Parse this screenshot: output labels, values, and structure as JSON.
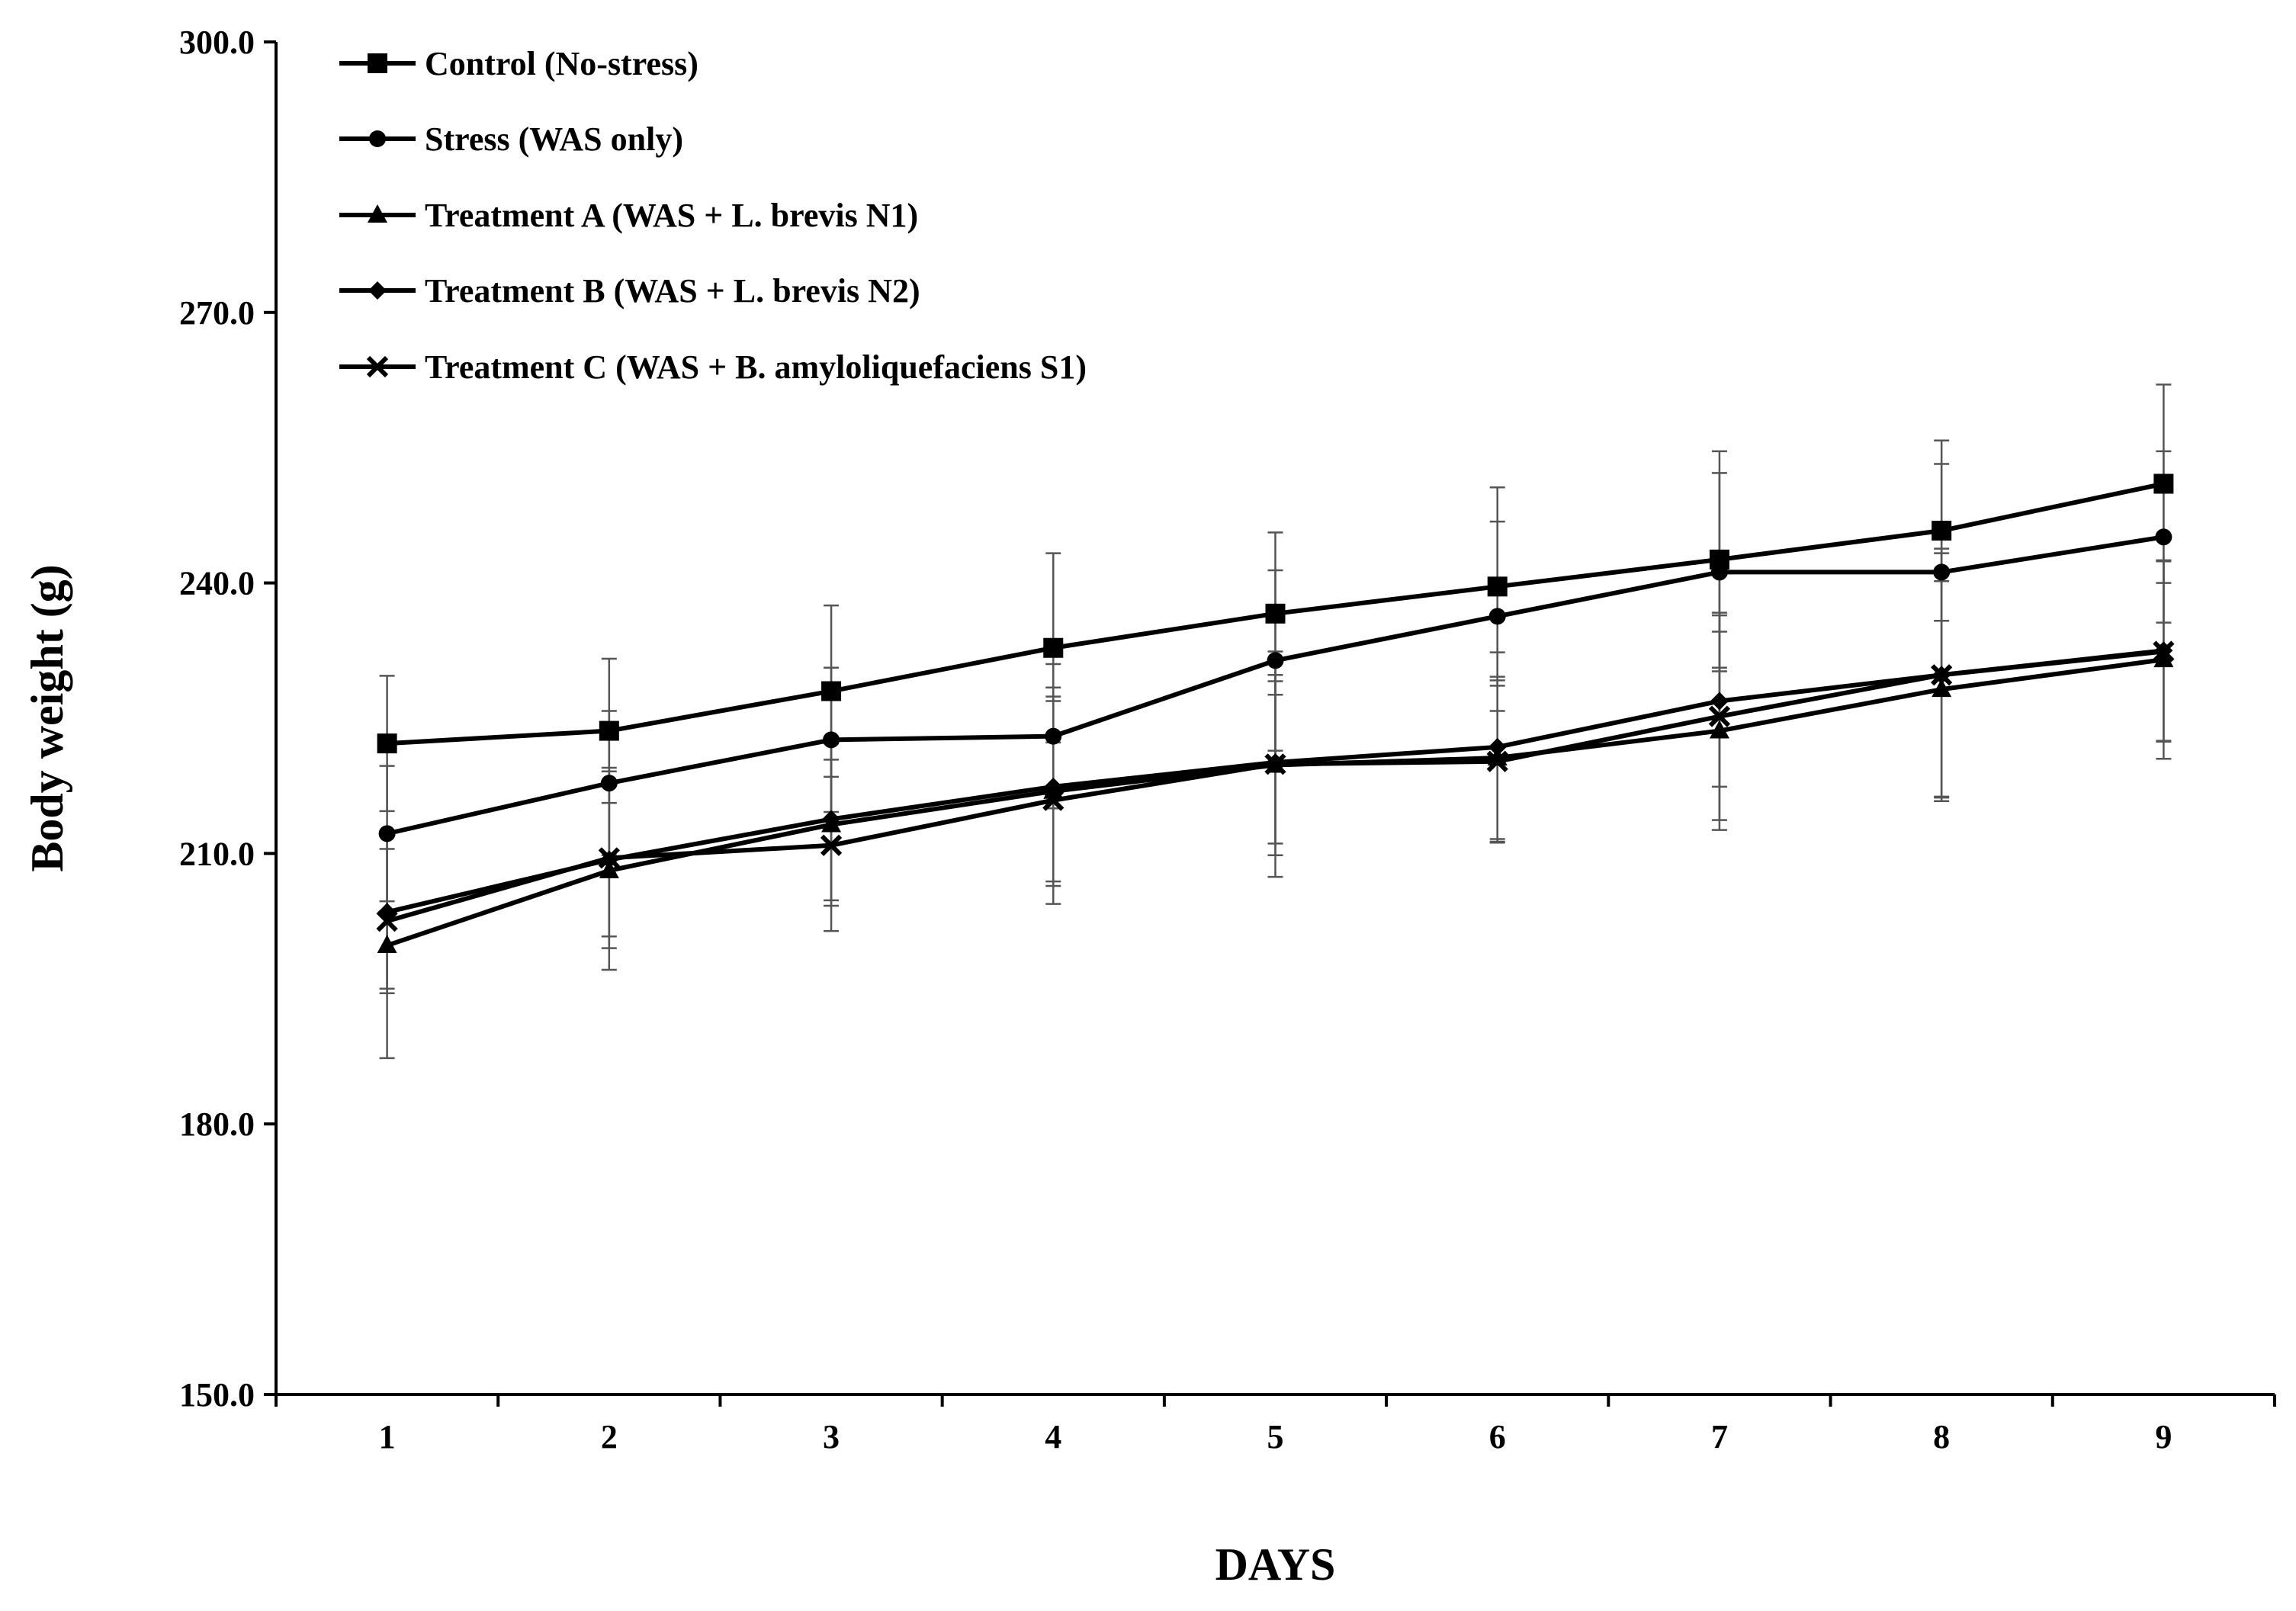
{
  "chart_data": {
    "type": "line",
    "title": "",
    "xlabel": "DAYS",
    "ylabel": "Body weight (g)",
    "categories": [
      "1",
      "2",
      "3",
      "4",
      "5",
      "6",
      "7",
      "8",
      "9"
    ],
    "ylim": [
      150,
      300
    ],
    "yticks": [
      "150.0",
      "180.0",
      "210.0",
      "240.0",
      "270.0",
      "300.0"
    ],
    "ytick_values": [
      150,
      180,
      210,
      240,
      270,
      300
    ],
    "legend_position": "top-left",
    "grid": false,
    "series": [
      {
        "name": "Control (No-stress)",
        "marker": "square",
        "values": [
          222.2,
          223.6,
          228.0,
          232.8,
          236.6,
          239.6,
          242.6,
          245.8,
          251.0
        ],
        "errors": [
          7.5,
          8.0,
          9.5,
          10.5,
          9.0,
          11.0,
          12.0,
          10.0,
          11.0
        ]
      },
      {
        "name": "Stress (WAS only)",
        "marker": "circle",
        "values": [
          212.2,
          217.8,
          222.6,
          223.0,
          231.4,
          236.3,
          241.2,
          241.2,
          245.1
        ],
        "errors": [
          7.5,
          8.0,
          8.0,
          8.0,
          10.0,
          10.5,
          11.0,
          12.0,
          9.5
        ]
      },
      {
        "name": "Treatment A (WAS + L. brevis N1)",
        "marker": "triangle",
        "values": [
          199.8,
          208.1,
          213.2,
          216.9,
          219.8,
          220.6,
          223.6,
          228.2,
          231.5
        ],
        "errors": [
          12.5,
          11.0,
          9.0,
          10.0,
          10.0,
          9.0,
          11.0,
          12.0,
          11.0
        ]
      },
      {
        "name": "Treatment B (WAS + L. brevis N2)",
        "marker": "diamond",
        "values": [
          203.5,
          209.3,
          213.8,
          217.4,
          220.1,
          221.8,
          226.9,
          229.8,
          232.5
        ],
        "errors": [
          8.5,
          8.5,
          9.0,
          11.0,
          9.0,
          10.5,
          9.5,
          13.5,
          10.0
        ]
      },
      {
        "name": "Treatment C (WAS + B. amyloliquefaciens S1)",
        "marker": "x",
        "values": [
          202.5,
          209.5,
          210.9,
          215.9,
          219.9,
          220.2,
          225.2,
          229.8,
          232.4
        ],
        "errors": [
          8.0,
          10.0,
          9.5,
          11.5,
          12.5,
          9.0,
          11.5,
          14.0,
          10.0
        ]
      }
    ]
  }
}
